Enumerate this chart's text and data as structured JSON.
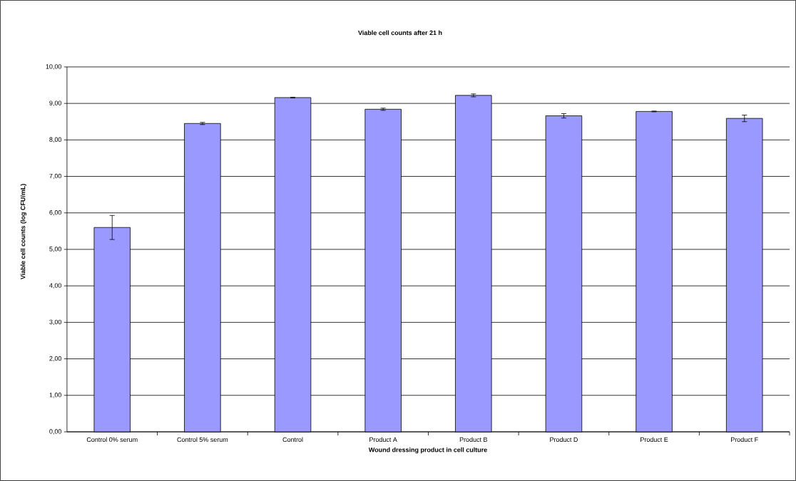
{
  "chart_data": {
    "type": "bar",
    "title": "Viable cell counts after 21 h",
    "xlabel": "Wound dressing product in cell culture",
    "ylabel": "Viable cell counts (log CFU/mL)",
    "categories": [
      "Control 0% serum",
      "Control 5% serum",
      "Control",
      "Product A",
      "Product B",
      "Product D",
      "Product E",
      "Product F"
    ],
    "values": [
      5.6,
      8.45,
      9.16,
      8.84,
      9.22,
      8.66,
      8.78,
      8.59
    ],
    "errors": [
      0.33,
      0.03,
      0.01,
      0.03,
      0.04,
      0.06,
      0.01,
      0.09
    ],
    "color": "#9999ff",
    "ylim": [
      0,
      10
    ],
    "yticks": [
      {
        "value": 0,
        "label": "0,00"
      },
      {
        "value": 1,
        "label": "1,00"
      },
      {
        "value": 2,
        "label": "2,00"
      },
      {
        "value": 3,
        "label": "3,00"
      },
      {
        "value": 4,
        "label": "4,00"
      },
      {
        "value": 5,
        "label": "5,00"
      },
      {
        "value": 6,
        "label": "6,00"
      },
      {
        "value": 7,
        "label": "7,00"
      },
      {
        "value": 8,
        "label": "8,00"
      },
      {
        "value": 9,
        "label": "9,00"
      },
      {
        "value": 10,
        "label": "10,00"
      }
    ],
    "grid": "y"
  }
}
